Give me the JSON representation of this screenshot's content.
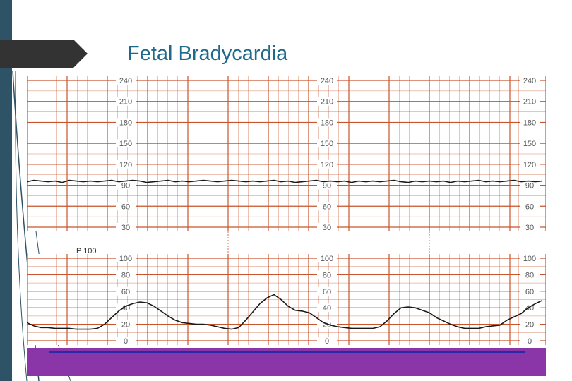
{
  "slide": {
    "title": "Fetal Bradycardia"
  },
  "colors": {
    "accent_bar": "#2e5266",
    "title_text": "#1f6a8c",
    "grid": "#c8552c",
    "trace": "#1a1a1a",
    "tick_label": "#555555",
    "footer_band": "#8a35a8",
    "footer_line": "#2a2aa8"
  },
  "chart_data": [
    {
      "type": "line",
      "title": "",
      "ylabel": "",
      "xlabel": "",
      "ylim": [
        30,
        240
      ],
      "y_ticks": [
        240,
        210,
        180,
        150,
        120,
        90,
        60,
        30
      ],
      "tick_labels": [
        "240",
        "210",
        "180",
        "150",
        "120",
        "90",
        "60",
        "30"
      ],
      "grid": true,
      "series": [
        {
          "x": [
            0,
            10,
            20,
            30,
            40,
            50,
            60,
            70,
            80,
            90,
            100,
            110,
            120,
            130,
            140,
            150,
            160,
            170,
            180,
            190,
            200,
            210,
            220,
            230,
            240,
            250,
            260,
            270,
            280,
            290,
            300,
            310,
            320,
            330,
            340,
            350,
            360,
            370,
            380,
            390,
            400,
            410,
            420,
            430,
            440,
            450,
            460,
            470,
            480,
            490,
            500,
            510,
            520,
            530,
            540,
            550,
            560,
            570,
            580,
            590,
            600,
            610,
            620,
            630,
            640,
            650,
            660,
            670,
            680,
            690,
            700,
            710,
            720,
            730
          ],
          "values": [
            95,
            97,
            96,
            95,
            96,
            94,
            97,
            96,
            95,
            96,
            95,
            96,
            97,
            95,
            96,
            97,
            96,
            94,
            95,
            96,
            97,
            95,
            96,
            95,
            96,
            97,
            96,
            95,
            96,
            97,
            96,
            95,
            96,
            95,
            96,
            97,
            95,
            96,
            94,
            95,
            96,
            97,
            95,
            96,
            95,
            96,
            94,
            96,
            95,
            96,
            95,
            96,
            97,
            95,
            94,
            96,
            95,
            96,
            95,
            96,
            94,
            96,
            95,
            96,
            97,
            95,
            96,
            95,
            96,
            97,
            95,
            96,
            95,
            96
          ]
        }
      ]
    },
    {
      "type": "line",
      "title": "",
      "annotation": "P 100",
      "ylim": [
        0,
        100
      ],
      "y_ticks": [
        100,
        80,
        60,
        40,
        20,
        0
      ],
      "tick_labels": [
        "100",
        "80",
        "60",
        "40",
        "20",
        "0"
      ],
      "grid": true,
      "series": [
        {
          "x": [
            0,
            10,
            20,
            30,
            40,
            50,
            60,
            70,
            80,
            90,
            100,
            110,
            120,
            130,
            140,
            150,
            160,
            170,
            180,
            190,
            200,
            210,
            220,
            230,
            240,
            250,
            260,
            270,
            280,
            290,
            300,
            310,
            320,
            330,
            340,
            350,
            360,
            370,
            380,
            390,
            400,
            410,
            420,
            430,
            440,
            450,
            460,
            470,
            480,
            490,
            500,
            510,
            520,
            530,
            540,
            550,
            560,
            570,
            580,
            590,
            600,
            610,
            620,
            630,
            640,
            650,
            660,
            670,
            680,
            690,
            700,
            710,
            720,
            730
          ],
          "values": [
            22,
            18,
            16,
            16,
            15,
            15,
            15,
            14,
            14,
            14,
            15,
            20,
            28,
            36,
            42,
            45,
            47,
            46,
            42,
            36,
            30,
            25,
            22,
            21,
            20,
            20,
            19,
            17,
            15,
            14,
            16,
            25,
            35,
            45,
            52,
            56,
            50,
            42,
            37,
            36,
            34,
            28,
            22,
            19,
            17,
            16,
            15,
            15,
            15,
            15,
            17,
            24,
            33,
            40,
            41,
            40,
            37,
            34,
            28,
            24,
            20,
            17,
            15,
            15,
            15,
            17,
            18,
            19,
            25,
            29,
            33,
            40,
            45,
            49
          ]
        }
      ]
    }
  ]
}
